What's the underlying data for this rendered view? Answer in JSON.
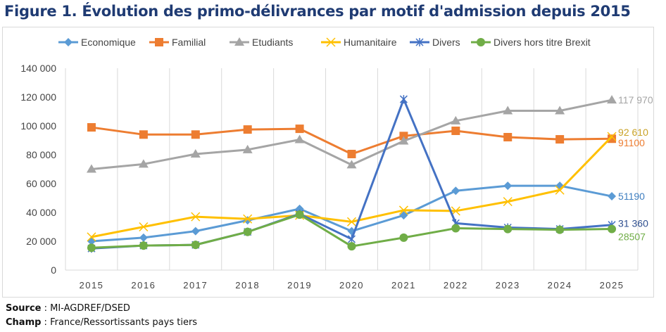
{
  "chart_data": {
    "type": "line",
    "title": "Figure 1. Évolution des primo-délivrances par motif d'admission depuis 2015",
    "categories": [
      "2015",
      "2016",
      "2017",
      "2018",
      "2019",
      "2020",
      "2021",
      "2022",
      "2023",
      "2024",
      "2025"
    ],
    "ylim": [
      0,
      140000
    ],
    "yticks": [
      0,
      20000,
      40000,
      60000,
      80000,
      100000,
      120000,
      140000
    ],
    "ytick_labels": [
      "0",
      "20 000",
      "40 000",
      "60 000",
      "80 000",
      "100 000",
      "120 000",
      "140 000"
    ],
    "grid": "vertical",
    "legend_position": "top",
    "series": [
      {
        "name": "Economique",
        "color": "#5b9bd5",
        "marker": "diamond",
        "values": [
          20000,
          22500,
          27000,
          34500,
          42500,
          27000,
          38000,
          55000,
          58500,
          58500,
          51190
        ],
        "end_label": "51190"
      },
      {
        "name": "Familial",
        "color": "#ed7d31",
        "marker": "square",
        "values": [
          99000,
          94000,
          94000,
          97500,
          98000,
          80500,
          93000,
          96600,
          92200,
          90700,
          91100
        ],
        "end_label": "91100"
      },
      {
        "name": "Etudiants",
        "color": "#a5a5a5",
        "marker": "triangle",
        "values": [
          70000,
          73500,
          80500,
          83500,
          90500,
          73000,
          89500,
          103500,
          110500,
          110500,
          117970
        ],
        "end_label": "117 970"
      },
      {
        "name": "Humanitaire",
        "color": "#ffc000",
        "marker": "x",
        "values": [
          23000,
          30000,
          37000,
          35500,
          38000,
          33500,
          41500,
          41000,
          47500,
          55500,
          92610
        ],
        "end_label": "92 610"
      },
      {
        "name": "Divers",
        "color": "#4472c4",
        "marker": "star",
        "values": [
          15000,
          17000,
          17500,
          26500,
          39000,
          21500,
          118500,
          32500,
          29500,
          28500,
          31360
        ],
        "end_label": "31 360"
      },
      {
        "name": "Divers hors titre Brexit",
        "color": "#70ad47",
        "marker": "circle",
        "values": [
          15500,
          17000,
          17500,
          26500,
          38500,
          16500,
          22500,
          29000,
          28500,
          28000,
          28507
        ],
        "end_label": "28507"
      }
    ]
  },
  "footer": {
    "source_label": "Source",
    "source_value": " : MI-AGDREF/DSED",
    "champ_label": "Champ",
    "champ_value": " : France/Ressortissants pays tiers"
  }
}
